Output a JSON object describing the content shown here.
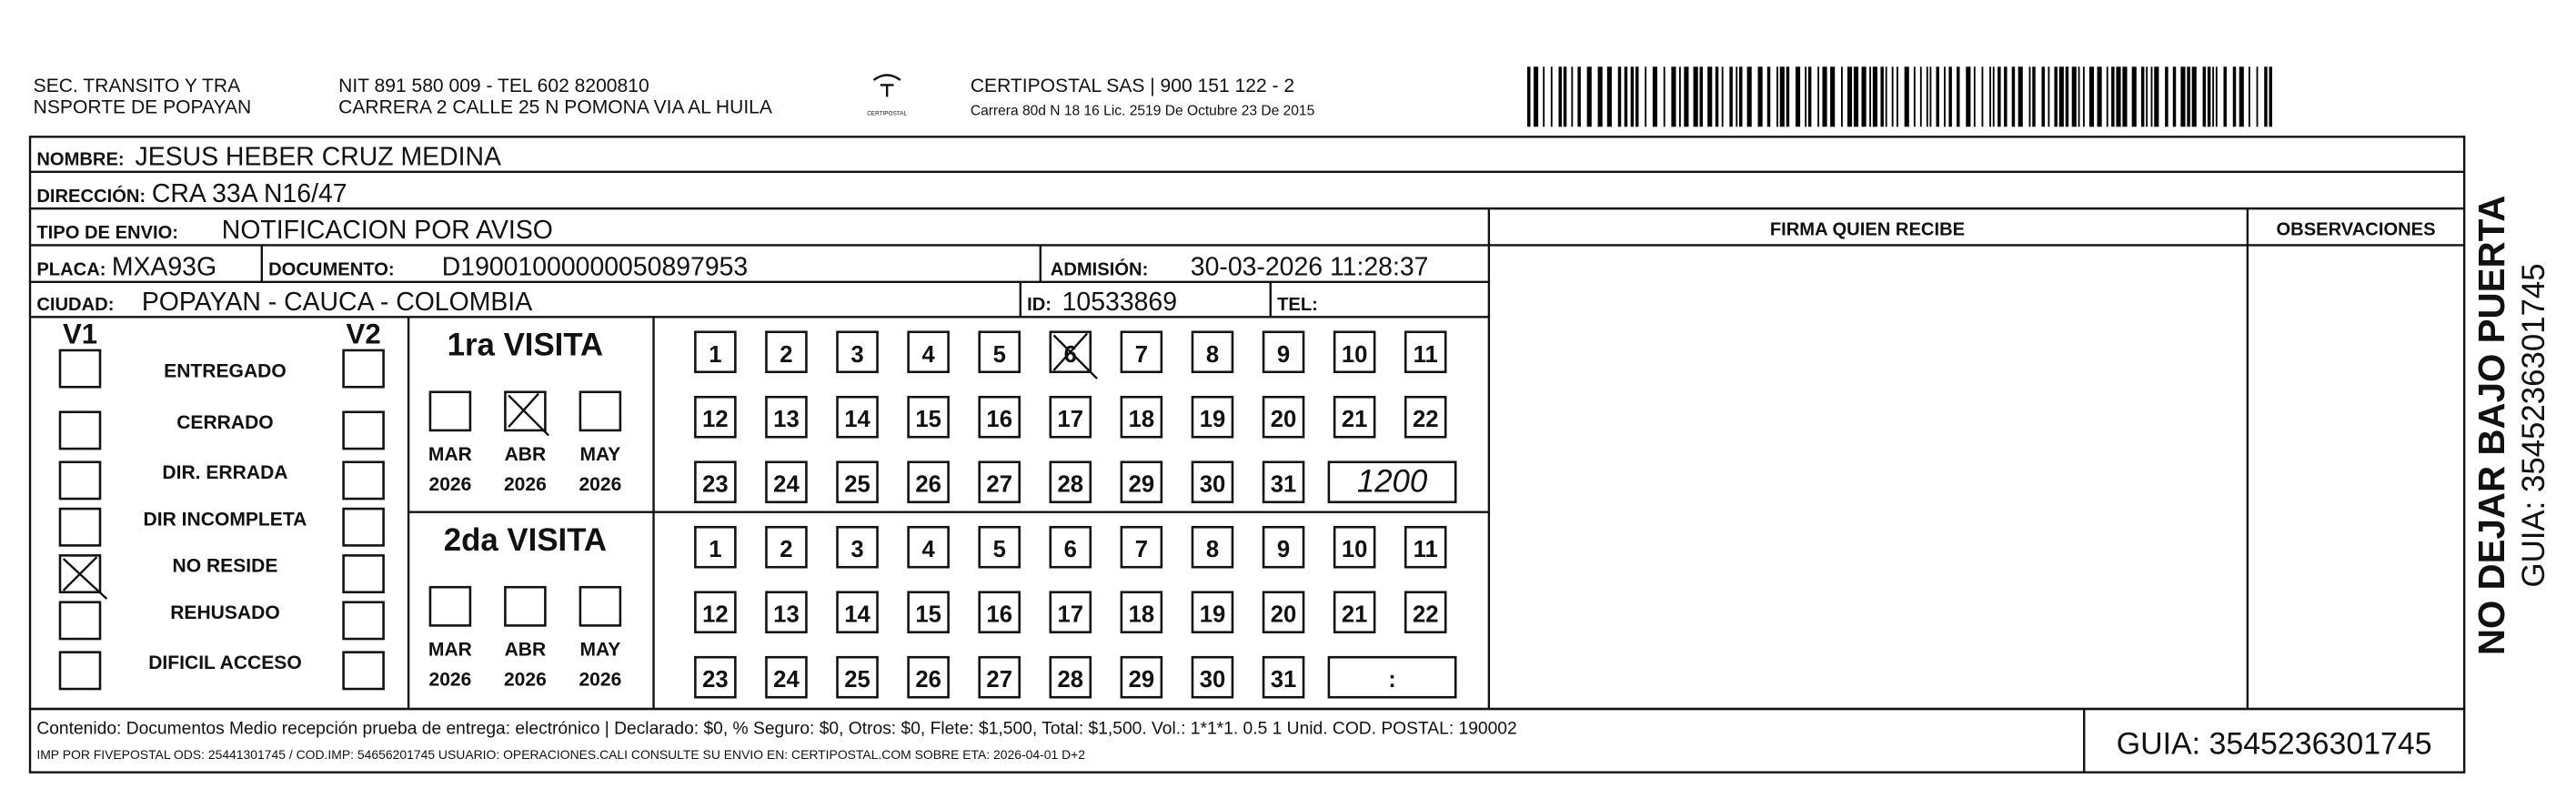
{
  "header": {
    "sender": [
      "SEC. TRANSITO Y TRA",
      "NSPORTE DE POPAYAN"
    ],
    "sender_info": [
      "NIT 891 580 009 - TEL 602 8200810",
      "CARRERA 2 CALLE 25 N POMONA VIA AL HUILA"
    ],
    "logo_text": "CERTIPOSTAL",
    "company": "CERTIPOSTAL SAS | 900 151 122 - 2",
    "company_address": "Carrera 80d N 18 16  Lic. 2519 De Octubre 23 De 2015"
  },
  "fields": {
    "nombre": {
      "label": "NOMBRE:",
      "value": "JESUS HEBER CRUZ MEDINA"
    },
    "direccion": {
      "label": "DIRECCIÓN:",
      "value": "CRA 33A N16/47"
    },
    "tipo": {
      "label": "TIPO DE ENVIO:",
      "value": "NOTIFICACION POR AVISO"
    },
    "placa": {
      "label": "PLACA:",
      "value": "MXA93G"
    },
    "documento": {
      "label": "DOCUMENTO:",
      "value": "D19001000000050897953"
    },
    "admision": {
      "label": "ADMISIÓN:",
      "value": "30-03-2026 11:28:37"
    },
    "ciudad": {
      "label": "CIUDAD:",
      "value": "POPAYAN - CAUCA - COLOMBIA"
    },
    "id": {
      "label": "ID:",
      "value": "10533869"
    },
    "tel": {
      "label": "TEL:"
    }
  },
  "signature_header": "FIRMA QUIEN RECIBE",
  "observations_header": "OBSERVACIONES",
  "status": {
    "v1": "V1",
    "v2": "V2",
    "options": [
      "ENTREGADO",
      "CERRADO",
      "DIR. ERRADA",
      "DIR INCOMPLETA",
      "NO RESIDE",
      "REHUSADO",
      "DIFICIL ACCESO"
    ],
    "v1_checked": [
      false,
      false,
      false,
      false,
      true,
      false,
      false
    ],
    "v2_checked": [
      false,
      false,
      false,
      false,
      false,
      false,
      false
    ]
  },
  "visits": [
    {
      "title": "1ra VISITA",
      "months": [
        "MAR",
        "ABR",
        "MAY"
      ],
      "years": [
        "2026",
        "2026",
        "2026"
      ],
      "months_checked": [
        false,
        true,
        false
      ],
      "days": [
        1,
        2,
        3,
        4,
        5,
        6,
        7,
        8,
        9,
        10,
        11,
        12,
        13,
        14,
        15,
        16,
        17,
        18,
        19,
        20,
        21,
        22,
        23,
        24,
        25,
        26,
        27,
        28,
        29,
        30,
        31
      ],
      "days_checked": [
        false,
        false,
        false,
        false,
        false,
        true,
        false,
        false,
        false,
        false,
        false,
        false,
        false,
        false,
        false,
        false,
        false,
        false,
        false,
        false,
        false,
        false,
        false,
        false,
        false,
        false,
        false,
        false,
        false,
        false,
        false
      ],
      "time": "1200"
    },
    {
      "title": "2da VISITA",
      "months": [
        "MAR",
        "ABR",
        "MAY"
      ],
      "years": [
        "2026",
        "2026",
        "2026"
      ],
      "months_checked": [
        false,
        false,
        false
      ],
      "days": [
        1,
        2,
        3,
        4,
        5,
        6,
        7,
        8,
        9,
        10,
        11,
        12,
        13,
        14,
        15,
        16,
        17,
        18,
        19,
        20,
        21,
        22,
        23,
        24,
        25,
        26,
        27,
        28,
        29,
        30,
        31
      ],
      "days_checked": [
        false,
        false,
        false,
        false,
        false,
        false,
        false,
        false,
        false,
        false,
        false,
        false,
        false,
        false,
        false,
        false,
        false,
        false,
        false,
        false,
        false,
        false,
        false,
        false,
        false,
        false,
        false,
        false,
        false,
        false,
        false
      ],
      "time": ":"
    }
  ],
  "footer": {
    "line1": "Contenido: Documentos Medio recepción prueba de entrega: electrónico | Declarado: $0, % Seguro: $0, Otros: $0, Flete: $1,500, Total: $1,500. Vol.: 1*1*1. 0.5  1 Unid. COD. POSTAL: 190002",
    "line2": "IMP POR FIVEPOSTAL ODS: 25441301745 / COD.IMP: 54656201745 USUARIO: OPERACIONES.CALI CONSULTE SU ENVIO EN: CERTIPOSTAL.COM SOBRE ETA: 2026-04-01 D+2",
    "guia": "GUIA: 3545236301745"
  },
  "side": {
    "warning": "NO DEJAR BAJO PUERTA",
    "guia": "GUIA: 3545236301745"
  }
}
